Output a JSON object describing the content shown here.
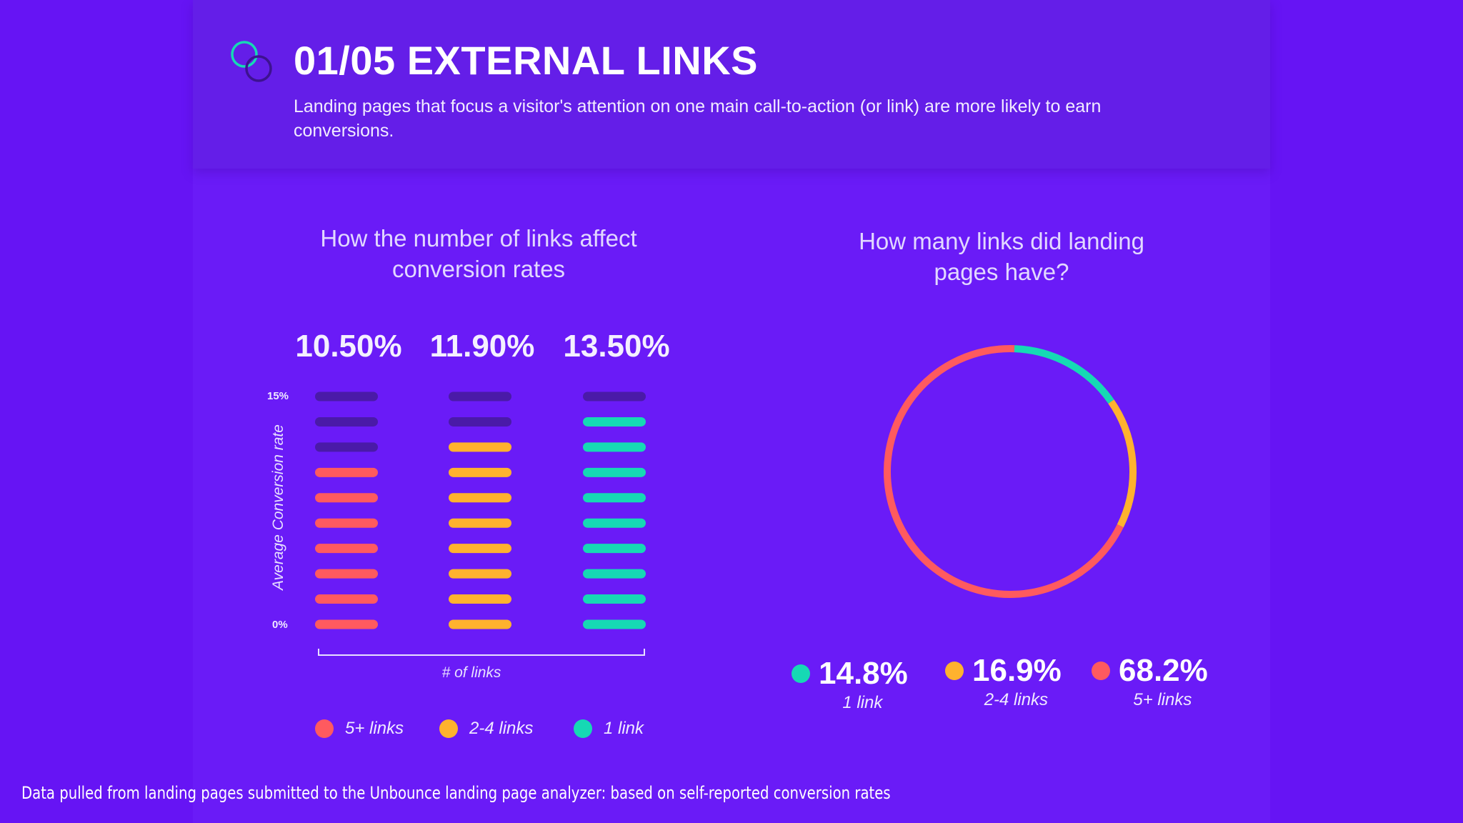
{
  "header": {
    "title": "01/05 EXTERNAL LINKS",
    "subtitle": "Landing pages that focus a visitor's attention on one main call-to-action (or link) are more likely to earn conversions."
  },
  "colors": {
    "five_plus": "#ff5a5f",
    "two_four": "#ffb22e",
    "one": "#16d9b4",
    "empty_bar": "#4a1aa8"
  },
  "chart_data": [
    {
      "type": "bar",
      "title": "How the number of links affect conversion rates",
      "ylabel": "Average Conversion rate",
      "xlabel": "# of links",
      "ylim": [
        0,
        15
      ],
      "y_ticks": [
        "15%",
        "0%"
      ],
      "categories": [
        "5+ links",
        "2-4 links",
        "1 link"
      ],
      "values": [
        10.5,
        11.9,
        13.5
      ],
      "value_labels": [
        "10.50%",
        "11.90%",
        "13.50%"
      ],
      "bar_segments_total": 10,
      "filled_segments": [
        7,
        8,
        9
      ],
      "legend": [
        "5+ links",
        "2-4 links",
        "1 link"
      ]
    },
    {
      "type": "pie",
      "title": "How many links did landing pages have?",
      "categories": [
        "1 link",
        "2-4 links",
        "5+ links"
      ],
      "values": [
        14.8,
        16.9,
        68.2
      ],
      "value_labels": [
        "14.8%",
        "16.9%",
        "68.2%"
      ]
    }
  ],
  "footer": "Data pulled from landing pages submitted to the Unbounce landing page analyzer: based on self-reported conversion rates"
}
